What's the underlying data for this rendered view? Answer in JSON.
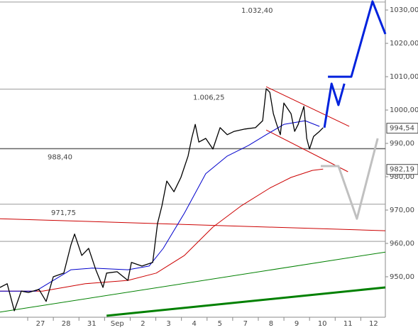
{
  "chart_data": {
    "type": "line",
    "xlim": [
      -1.58,
      13.46
    ],
    "ylim": [
      938.5,
      1033
    ],
    "xticks": [
      {
        "value": 0,
        "label": "27"
      },
      {
        "value": 1,
        "label": "28"
      },
      {
        "value": 2,
        "label": "31"
      },
      {
        "value": 3,
        "label": "Sep"
      },
      {
        "value": 4,
        "label": "2"
      },
      {
        "value": 5,
        "label": "3"
      },
      {
        "value": 6,
        "label": "4"
      },
      {
        "value": 7,
        "label": "5"
      },
      {
        "value": 8,
        "label": "7"
      },
      {
        "value": 9,
        "label": "8"
      },
      {
        "value": 10,
        "label": "9"
      },
      {
        "value": 11,
        "label": "10"
      },
      {
        "value": 12,
        "label": "11"
      },
      {
        "value": 13,
        "label": "12"
      }
    ],
    "yticks": [
      {
        "value": 1030,
        "label": "1030,00"
      },
      {
        "value": 1020,
        "label": "1020,00"
      },
      {
        "value": 1010,
        "label": "1010,00"
      },
      {
        "value": 1000,
        "label": "1000,00"
      },
      {
        "value": 990,
        "label": "990,00"
      },
      {
        "value": 980,
        "label": "980,00"
      },
      {
        "value": 970,
        "label": "970,00"
      },
      {
        "value": 960,
        "label": "960,00"
      },
      {
        "value": 950,
        "label": "950,00"
      }
    ],
    "levels": [
      {
        "value": 1032.4,
        "label": "1.032,40",
        "color": "#999999"
      },
      {
        "value": 1006.25,
        "label": "1.006,25",
        "color": "#999999"
      },
      {
        "value": 988.4,
        "label": "988,40",
        "color": "#666666"
      },
      {
        "value": 971.75,
        "label": "971,75",
        "color": "#999999"
      },
      {
        "value": 960.6,
        "color": "#999999"
      }
    ],
    "price_tags": [
      {
        "value": 994.54,
        "label": "994,54"
      },
      {
        "value": 982.19,
        "label": "982,19"
      }
    ],
    "series": [
      {
        "color": "#008000",
        "width": 1,
        "x": [
          -1.58,
          13.46
        ],
        "values": [
          939.4,
          957.4
        ]
      },
      {
        "color": "#008000",
        "width": 3,
        "x": [
          2.58,
          13.46
        ],
        "values": [
          938.3,
          946.8
        ]
      },
      {
        "color": "#cc0000",
        "width": 1,
        "x": [
          -1.58,
          13.46
        ],
        "values": [
          967.4,
          963.8
        ]
      },
      {
        "color": "#cc0000",
        "width": 1,
        "x": [
          8.81,
          12.05
        ],
        "values": [
          1007.0,
          995.1
        ]
      },
      {
        "color": "#cc0000",
        "width": 1,
        "x": [
          8.81,
          12.0
        ],
        "values": [
          994.0,
          981.5
        ]
      },
      {
        "color": "#c0c0c0",
        "width": 3,
        "x": [
          10.94,
          11.63,
          12.35,
          13.16
        ],
        "values": [
          983.2,
          983.2,
          967.4,
          991.5
        ]
      },
      {
        "color": "#cc0000",
        "width": 1,
        "x": [
          -1.58,
          0.08,
          1.75,
          3.41,
          4.52,
          5.62,
          6.73,
          7.84,
          8.95,
          9.78,
          10.61,
          11.03
        ],
        "values": [
          945.7,
          945.7,
          947.9,
          948.9,
          951.1,
          956.4,
          964.9,
          971.3,
          976.6,
          979.8,
          981.9,
          982.3
        ]
      },
      {
        "color": "#0000cc",
        "width": 1,
        "x": [
          -1.58,
          -0.19,
          1.19,
          2.02,
          3.41,
          4.24,
          4.79,
          5.62,
          6.45,
          7.29,
          8.12,
          8.81,
          9.5,
          10.33,
          10.89
        ],
        "values": [
          945.7,
          945.7,
          952.1,
          952.6,
          952.1,
          953.2,
          958.5,
          969.1,
          980.9,
          986.2,
          989.4,
          992.6,
          995.7,
          996.8,
          995.1
        ]
      },
      {
        "color": "#000000",
        "width": 1.3,
        "x": [
          -1.58,
          -1.3,
          -1.02,
          -0.75,
          -0.47,
          -0.06,
          0.22,
          0.5,
          0.91,
          1.19,
          1.33,
          1.61,
          1.88,
          2.16,
          2.44,
          2.58,
          2.99,
          3.41,
          3.55,
          3.96,
          4.38,
          4.57,
          4.74,
          4.93,
          5.21,
          5.48,
          5.76,
          5.9,
          6.04,
          6.18,
          6.45,
          6.73,
          7.01,
          7.29,
          7.56,
          7.98,
          8.39,
          8.67,
          8.81,
          8.95,
          9.09,
          9.22,
          9.36,
          9.5,
          9.78,
          9.92,
          10.06,
          10.28,
          10.39,
          10.5,
          10.66,
          10.89,
          11.03
        ],
        "values": [
          946.8,
          947.9,
          939.8,
          945.7,
          945.3,
          946.2,
          942.6,
          950.0,
          951.1,
          959.6,
          962.8,
          956.4,
          958.5,
          952.1,
          946.8,
          951.1,
          951.5,
          948.9,
          954.3,
          953.2,
          954.3,
          966.0,
          971.3,
          978.7,
          975.5,
          979.8,
          986.2,
          991.5,
          995.7,
          990.4,
          991.5,
          988.3,
          994.7,
          992.6,
          993.6,
          994.3,
          994.7,
          996.8,
          1006.4,
          1005.3,
          998.9,
          995.7,
          992.6,
          1002.1,
          998.9,
          993.6,
          995.7,
          1001.1,
          991.5,
          988.3,
          992.1,
          993.6,
          994.7
        ]
      },
      {
        "color": "#0022dd",
        "width": 3,
        "x": [
          11.08,
          11.36,
          11.63,
          11.86,
          null,
          11.22,
          12.13,
          12.96,
          13.46
        ],
        "values": [
          994.7,
          1007.9,
          1001.5,
          1007.9,
          null,
          1010.0,
          1010.0,
          1032.6,
          1022.8
        ]
      }
    ]
  }
}
